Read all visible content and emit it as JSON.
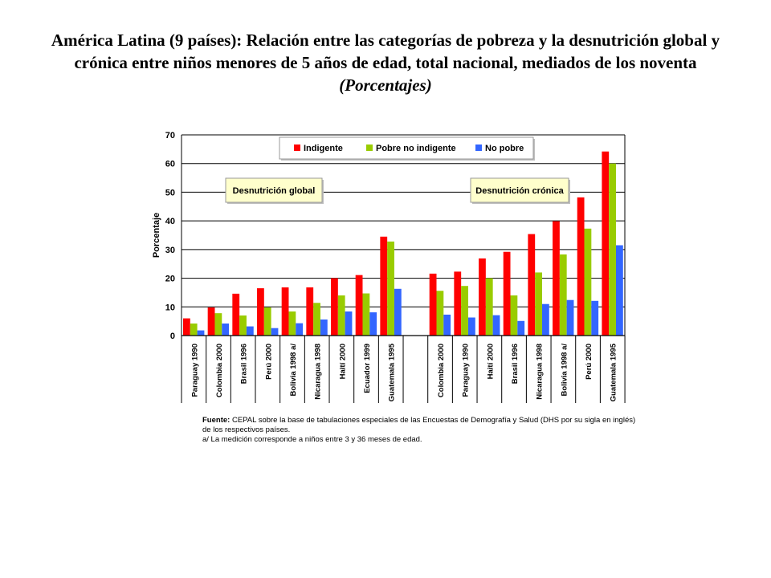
{
  "title": {
    "main": "América Latina (9 países): Relación entre las categorías de pobreza y la desnutrición global y crónica entre niños menores de 5 años de edad, total nacional, mediados de los noventa",
    "subtitle": "(Porcentajes)"
  },
  "source": {
    "label": "Fuente:",
    "text": "CEPAL sobre la base de tabulaciones especiales de las Encuestas de Demografía y Salud (DHS por su sigla en inglés) de los respectivos países.",
    "note": "a/ La medición corresponde a niños entre 3 y 36 meses de edad."
  },
  "chart_data": {
    "type": "bar",
    "ylabel": "Porcentaje",
    "xlabel": "",
    "ylim": [
      0,
      70
    ],
    "yticks": [
      0,
      10,
      20,
      30,
      40,
      50,
      60,
      70
    ],
    "grid": true,
    "legend_position": "top-center",
    "colors": {
      "Indigente": "#ff0000",
      "Pobre no indigente": "#99cc00",
      "No pobre": "#3366ff"
    },
    "groups": [
      {
        "name": "Desnutrición global",
        "categories": [
          "Paraguay 1990",
          "Colombia 2000",
          "Brasil 1996",
          "Perú 2000",
          "Bolivia 1998 a/",
          "Nicaragua 1998",
          "Haití 2000",
          "Ecuador 1999",
          "Guatemala 1995"
        ],
        "series": [
          {
            "name": "Indigente",
            "values": [
              6,
              9.8,
              14.6,
              16.5,
              16.8,
              16.8,
              20,
              21.1,
              34.5
            ]
          },
          {
            "name": "Pobre no indigente",
            "values": [
              4.2,
              7.8,
              7,
              9.8,
              8.4,
              11.4,
              14,
              14.7,
              32.8
            ]
          },
          {
            "name": "No pobre",
            "values": [
              1.8,
              4.2,
              3.2,
              2.6,
              4.3,
              5.6,
              8.4,
              8.1,
              16.3
            ]
          }
        ]
      },
      {
        "name": "Desnutrición crónica",
        "categories": [
          "Colombia 2000",
          "Paraguay 1990",
          "Haití 2000",
          "Brasil 1996",
          "Nicaragua 1998",
          "Bolivia 1998 a/",
          "Perú 2000",
          "Guatemala 1995"
        ],
        "series": [
          {
            "name": "Indigente",
            "values": [
              21.6,
              22.3,
              26.9,
              29.2,
              35.4,
              39.9,
              48.2,
              64.2
            ]
          },
          {
            "name": "Pobre no indigente",
            "values": [
              15.6,
              17.3,
              20,
              14,
              22,
              28.3,
              37.3,
              60
            ]
          },
          {
            "name": "No pobre",
            "values": [
              7.3,
              6.3,
              7.1,
              5.1,
              11,
              12.4,
              12.1,
              31.5
            ]
          }
        ]
      }
    ]
  }
}
